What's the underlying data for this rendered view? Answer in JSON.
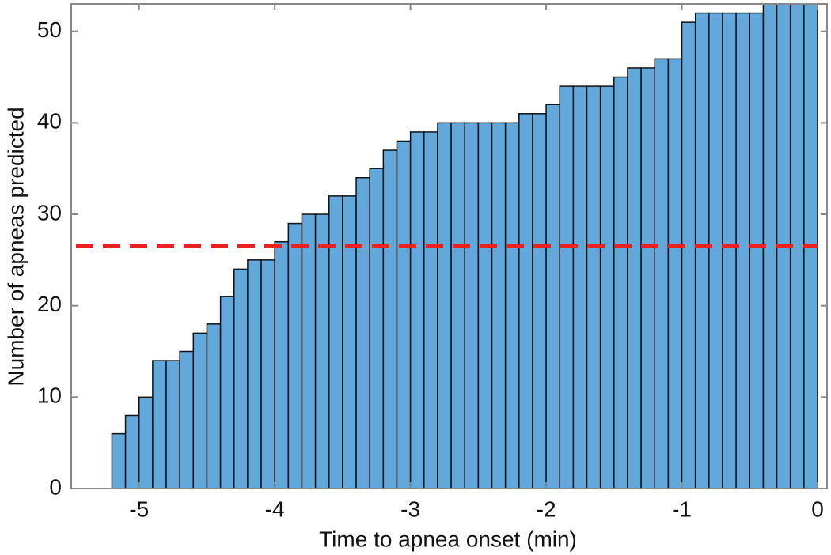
{
  "chart_data": {
    "type": "histogram",
    "xlabel": "Time to apnea onset (min)",
    "ylabel": "Number of apneas predicted",
    "bins": [
      -5.2,
      -5.1,
      -5.0,
      -4.9,
      -4.8,
      -4.7,
      -4.6,
      -4.5,
      -4.4,
      -4.3,
      -4.2,
      -4.1,
      -4.0,
      -3.9,
      -3.8,
      -3.7,
      -3.6,
      -3.5,
      -3.4,
      -3.3,
      -3.2,
      -3.1,
      -3.0,
      -2.9,
      -2.8,
      -2.7,
      -2.6,
      -2.5,
      -2.4,
      -2.3,
      -2.2,
      -2.1,
      -2.0,
      -1.9,
      -1.8,
      -1.7,
      -1.6,
      -1.5,
      -1.4,
      -1.3,
      -1.2,
      -1.1,
      -1.0,
      -0.9,
      -0.8,
      -0.7,
      -0.6,
      -0.5,
      -0.4,
      -0.3,
      -0.2,
      -0.1,
      0
    ],
    "counts": [
      6,
      8,
      10,
      14,
      14,
      15,
      17,
      18,
      21,
      24,
      25,
      25,
      27,
      29,
      30,
      30,
      32,
      32,
      34,
      35,
      37,
      38,
      39,
      39,
      40,
      40,
      40,
      40,
      40,
      40,
      41,
      41,
      42,
      44,
      44,
      44,
      44,
      45,
      46,
      46,
      47,
      47,
      51,
      52,
      52,
      52,
      52,
      52,
      53,
      53,
      53,
      53
    ],
    "color": "#62a8da",
    "threshold": 26.5,
    "threshold_color": "#e8221c",
    "xlim": [
      -5.5,
      0.07
    ],
    "ylim": [
      0,
      53
    ],
    "xticks": [
      -5,
      -4,
      -3,
      -2,
      -1,
      0
    ],
    "yticks": [
      0,
      10,
      20,
      30,
      40,
      50
    ]
  }
}
